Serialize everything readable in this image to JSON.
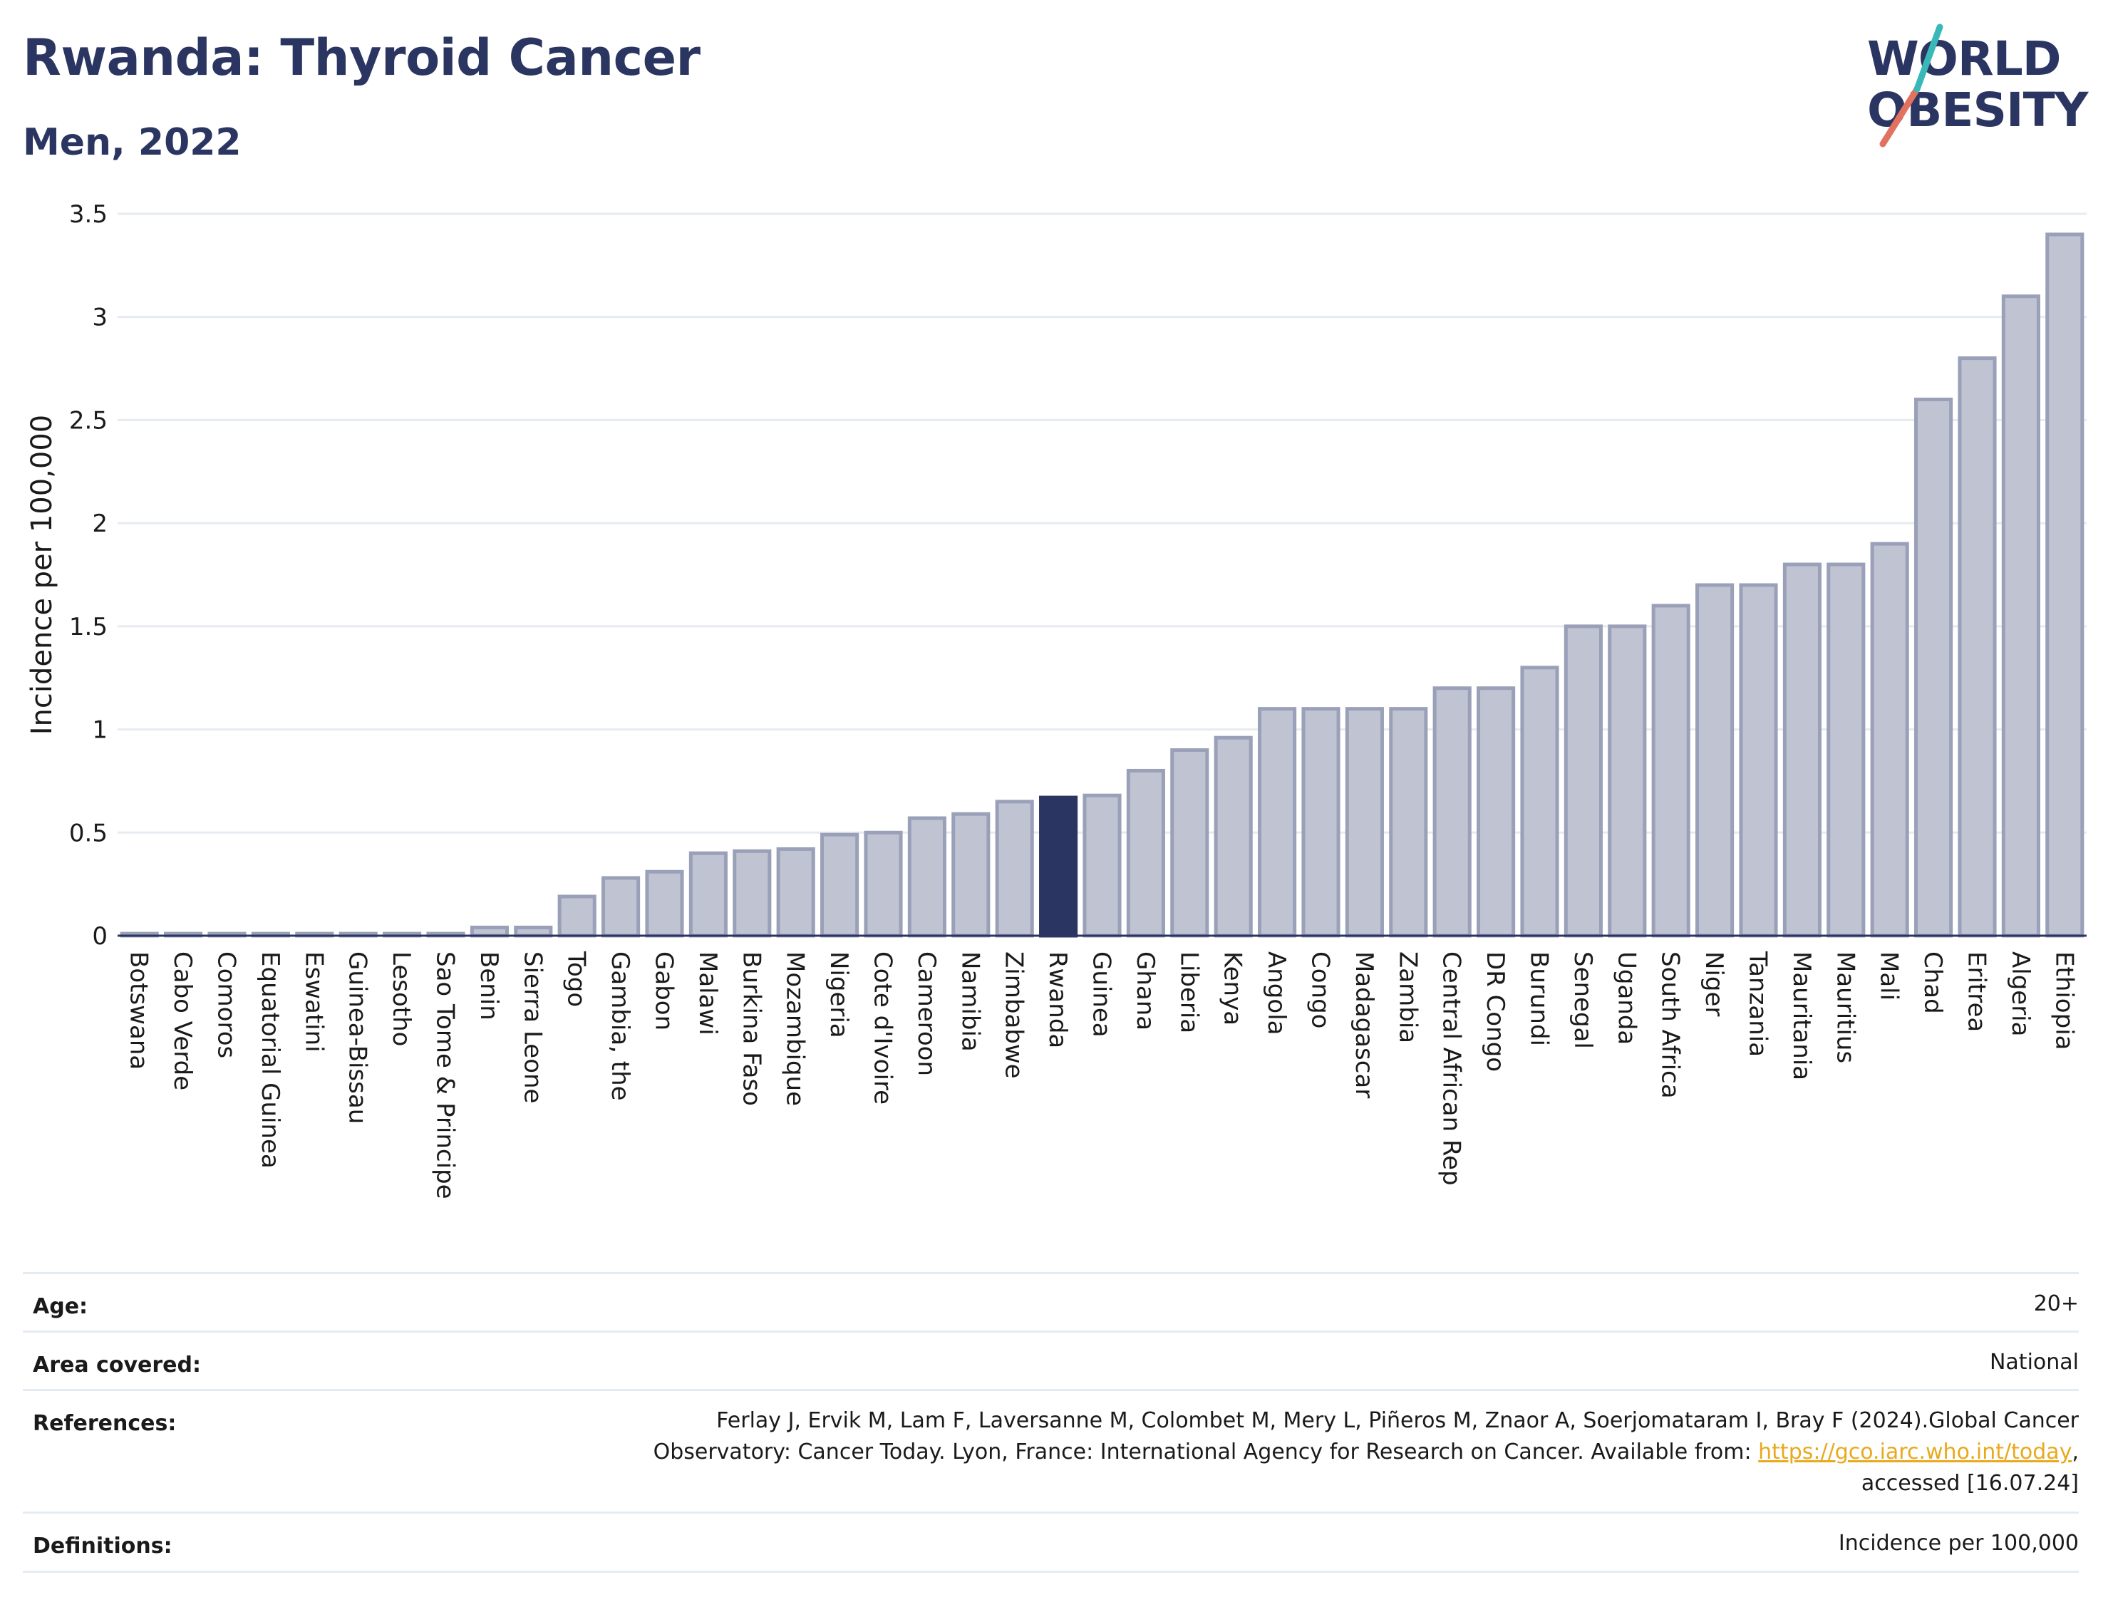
{
  "header": {
    "title": "Rwanda: Thyroid Cancer",
    "subtitle": "Men, 2022",
    "logo_line1": "WORLD",
    "logo_line2": "OBESITY"
  },
  "chart_data": {
    "type": "bar",
    "ylabel": "Incidence per 100,000",
    "xlabel": "",
    "ylim": [
      0,
      3.5
    ],
    "yticks": [
      0,
      0.5,
      1,
      1.5,
      2,
      2.5,
      3,
      3.5
    ],
    "grid": true,
    "highlight": "Rwanda",
    "colors": {
      "bar": "#bfc3d2",
      "bar_edge": "#9aa0b8",
      "highlight": "#2b3561",
      "grid": "#e6ebf2",
      "axis": "#2b3561"
    },
    "categories": [
      "Botswana",
      "Cabo Verde",
      "Comoros",
      "Equatorial Guinea",
      "Eswatini",
      "Guinea-Bissau",
      "Lesotho",
      "Sao Tome & Principe",
      "Benin",
      "Sierra Leone",
      "Togo",
      "Gambia, the",
      "Gabon",
      "Malawi",
      "Burkina Faso",
      "Mozambique",
      "Nigeria",
      "Cote d'Ivoire",
      "Cameroon",
      "Namibia",
      "Zimbabwe",
      "Rwanda",
      "Guinea",
      "Ghana",
      "Liberia",
      "Kenya",
      "Angola",
      "Congo",
      "Madagascar",
      "Zambia",
      "Central African Rep",
      "DR Congo",
      "Burundi",
      "Senegal",
      "Uganda",
      "South Africa",
      "Niger",
      "Tanzania",
      "Mauritania",
      "Mauritius",
      "Mali",
      "Chad",
      "Eritrea",
      "Algeria",
      "Ethiopia"
    ],
    "values": [
      0.01,
      0.01,
      0.01,
      0.01,
      0.01,
      0.01,
      0.01,
      0.01,
      0.04,
      0.04,
      0.19,
      0.28,
      0.31,
      0.4,
      0.41,
      0.42,
      0.49,
      0.5,
      0.57,
      0.59,
      0.65,
      0.67,
      0.68,
      0.8,
      0.9,
      0.96,
      1.1,
      1.1,
      1.1,
      1.1,
      1.2,
      1.2,
      1.3,
      1.5,
      1.5,
      1.6,
      1.7,
      1.7,
      1.8,
      1.8,
      1.9,
      2.6,
      2.8,
      3.1,
      3.4
    ]
  },
  "info": {
    "age_label": "Age:",
    "age_value": "20+",
    "area_label": "Area covered:",
    "area_value": "National",
    "ref_label": "References:",
    "ref_line1": "Ferlay J, Ervik M, Lam F, Laversanne M, Colombet M, Mery L, Piñeros M, Znaor A, Soerjomataram I, Bray F (2024).Global Cancer",
    "ref_line2_pre": "Observatory: Cancer Today. Lyon, France: International Agency for Research on Cancer. Available from: ",
    "ref_link": "https://gco.iarc.who.int/today",
    "ref_line2_post": ",",
    "ref_line3": "accessed [16.07.24]",
    "def_label": "Definitions:",
    "def_value": "Incidence per 100,000"
  }
}
